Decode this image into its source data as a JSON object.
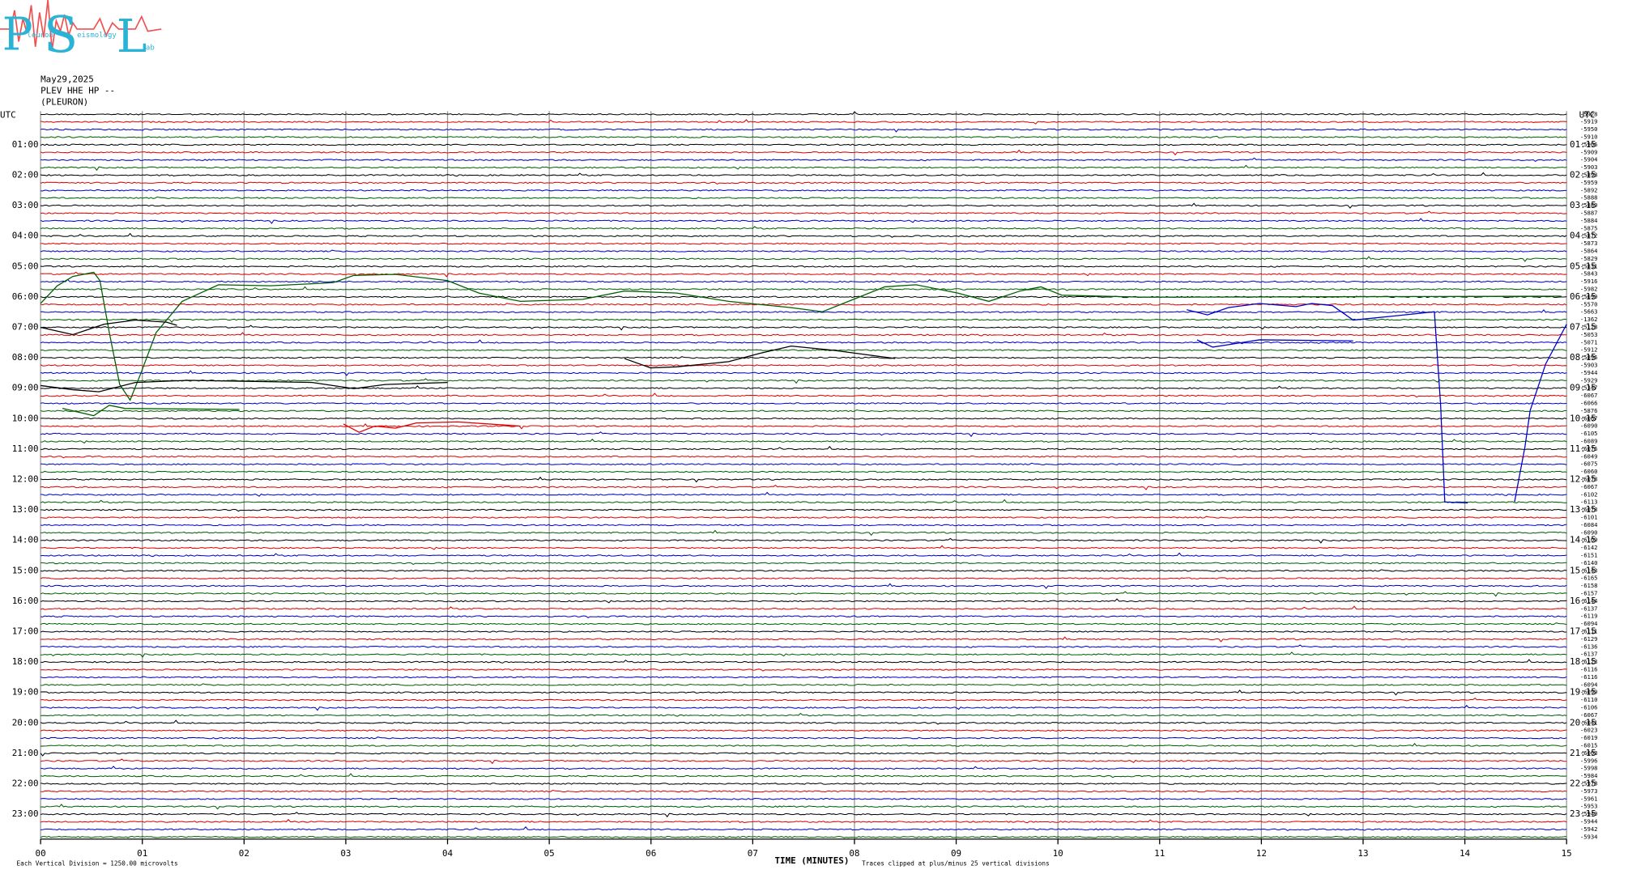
{
  "logo": {
    "initials": [
      "P",
      "S",
      "L"
    ],
    "words": [
      "leuron",
      "eismology",
      "ab"
    ]
  },
  "header": {
    "date": "May29,2025",
    "channel": "PLEV HHE HP --",
    "station": "(PLEURON)"
  },
  "axes": {
    "left_title": "UTC",
    "right_title": "UTC",
    "left_hours": [
      "01:00",
      "02:00",
      "03:00",
      "04:00",
      "05:00",
      "06:00",
      "07:00",
      "08:00",
      "09:00",
      "10:00",
      "11:00",
      "12:00",
      "13:00",
      "14:00",
      "15:00",
      "16:00",
      "17:00",
      "18:00",
      "19:00",
      "20:00",
      "21:00",
      "22:00",
      "23:00"
    ],
    "right_hours": [
      "01:15",
      "02:15",
      "03:15",
      "04:15",
      "05:15",
      "06:15",
      "07:15",
      "08:15",
      "09:15",
      "10:15",
      "11:15",
      "12:15",
      "13:15",
      "14:15",
      "15:15",
      "16:15",
      "17:15",
      "18:15",
      "19:15",
      "20:15",
      "21:15",
      "22:15",
      "23:15"
    ],
    "minute_ticks": [
      "00",
      "01",
      "02",
      "03",
      "04",
      "05",
      "06",
      "07",
      "08",
      "09",
      "10",
      "11",
      "12",
      "13",
      "14",
      "15"
    ],
    "x_label": "TIME (MINUTES)"
  },
  "row_values": [
    -5928,
    -5919,
    -5950,
    -5910,
    -5906,
    -5909,
    -5904,
    -5903,
    -5893,
    -5959,
    -5892,
    -5888,
    -5889,
    -5887,
    -5884,
    -5875,
    -5872,
    -5873,
    -5864,
    -5829,
    -5831,
    -5843,
    -5916,
    -5982,
    -5699,
    -5570,
    -5663,
    -1362,
    -5128,
    -5053,
    -5071,
    -5912,
    -5896,
    -5903,
    -5944,
    -5929,
    -5347,
    -6067,
    -6066,
    -5876,
    -6067,
    -6090,
    -6105,
    -6089,
    -6076,
    -6049,
    -6075,
    -6060,
    -6078,
    -6067,
    -6102,
    -6113,
    -6078,
    -6101,
    -6084,
    -6090,
    -6109,
    -6142,
    -6151,
    -6140,
    -6143,
    -6165,
    -6158,
    -6157,
    -6144,
    -6137,
    -6119,
    -6094,
    -6111,
    -6129,
    -6136,
    -6137,
    -6123,
    -6116,
    -6116,
    -6094,
    -6099,
    -6110,
    -6106,
    -6067,
    -6041,
    -6023,
    -6019,
    -6015,
    -6003,
    -5996,
    -5998,
    -5984,
    -5978,
    -5973,
    -5961,
    -5953,
    -5949,
    -5944,
    -5942,
    -5934
  ],
  "footer": {
    "division": "Each Vertical Division = 1250.00 microvolts",
    "clip": "Traces clipped at plus/minus 25 vertical divisions"
  }
}
